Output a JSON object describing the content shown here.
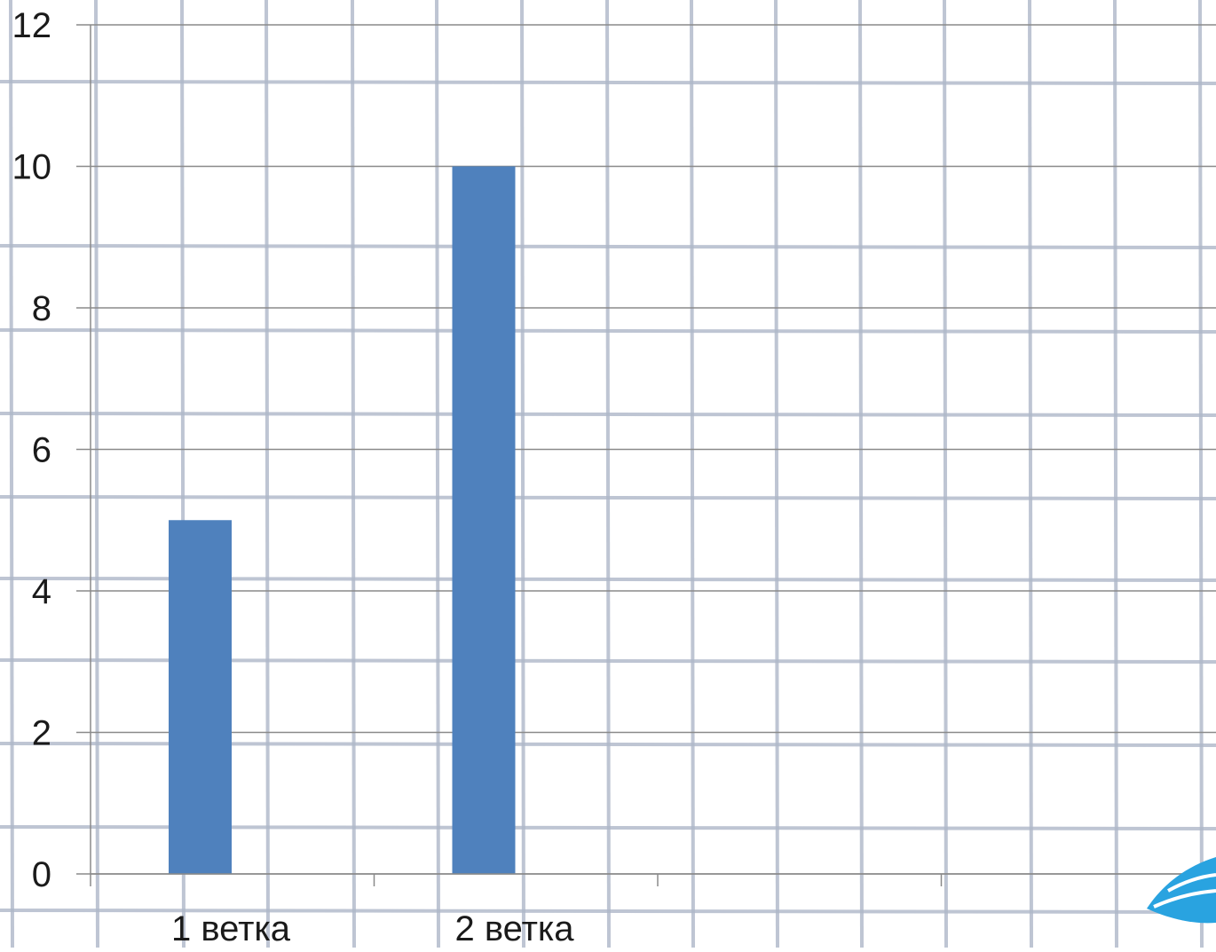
{
  "chart_data": {
    "type": "bar",
    "categories": [
      "1 ветка",
      "2 ветка",
      "",
      ""
    ],
    "values": [
      5,
      10,
      null,
      null
    ],
    "ylim": [
      0,
      12
    ],
    "yticks": [
      0,
      2,
      4,
      6,
      8,
      10,
      12
    ],
    "grid": true,
    "legend": "none",
    "colors": {
      "bar": "#4f81bd",
      "paper": "#ffffff",
      "paper_grid": "#aeb7c8",
      "chart_grid": "#8a8a8a",
      "axis": "#8a8a8a",
      "wing": "#29a3e0"
    }
  },
  "decoration": {
    "icon": "wing-icon"
  }
}
